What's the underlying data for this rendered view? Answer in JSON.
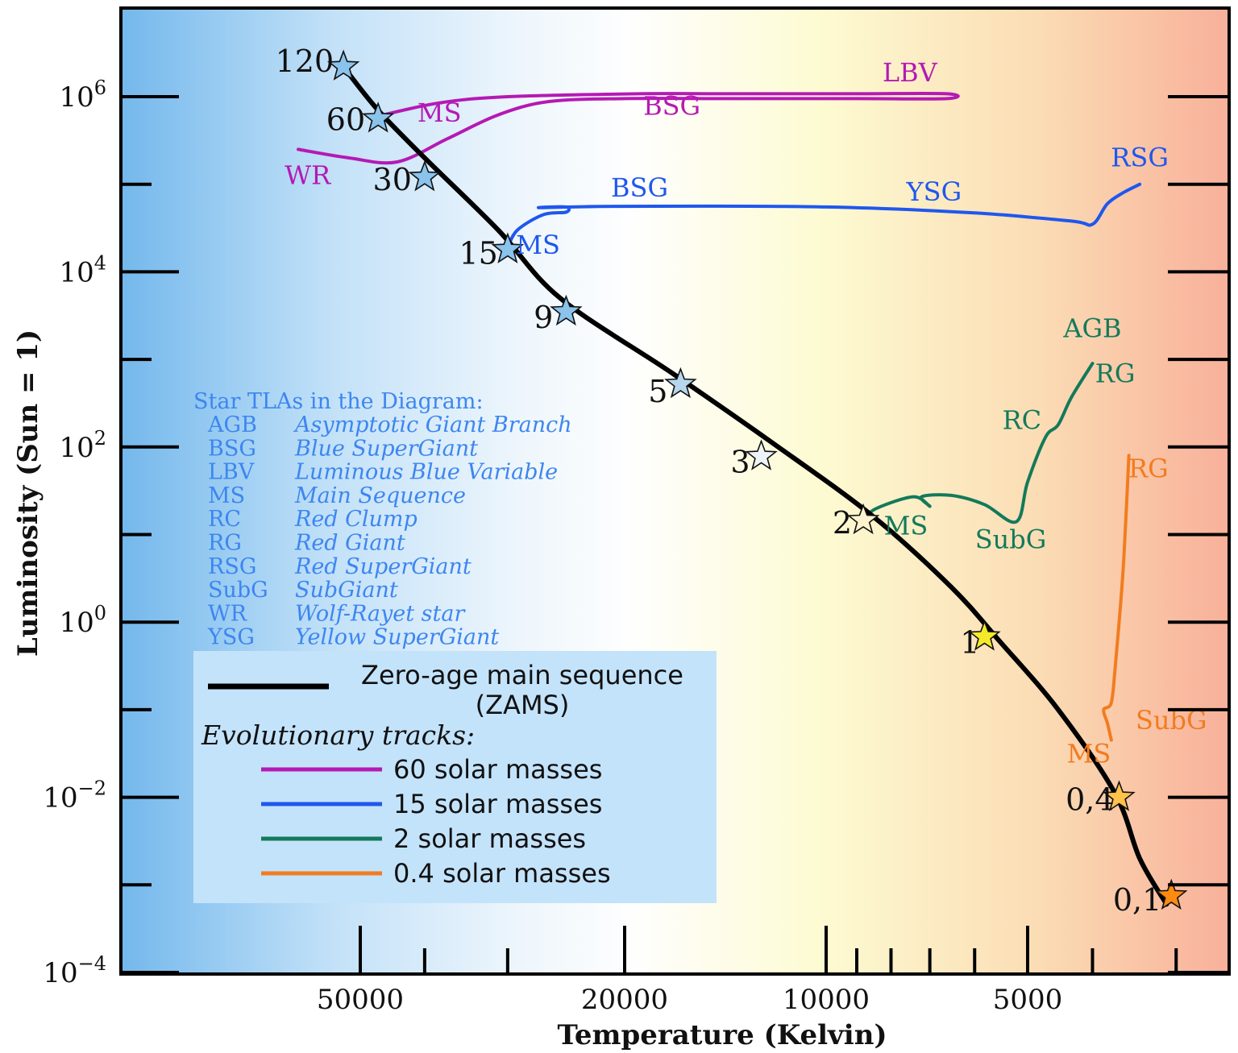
{
  "chart_data": {
    "type": "line",
    "title": "",
    "xlabel": "Temperature (Kelvin)",
    "ylabel": "Luminosity (Sun = 1)",
    "x_scale": "log, reversed",
    "y_scale": "log",
    "xlim": [
      70000,
      2800
    ],
    "ylim": [
      0.0001,
      10000000
    ],
    "grid": false,
    "x_tick_labels": [
      {
        "value": 50000,
        "label": "50000"
      },
      {
        "value": 20000,
        "label": "20000"
      },
      {
        "value": 10000,
        "label": "10000"
      },
      {
        "value": 5000,
        "label": "5000"
      }
    ],
    "x_minor_ticks": [
      40000,
      30000,
      9000,
      8000,
      7000,
      6000,
      4000,
      3000
    ],
    "y_tick_labels": [
      {
        "value": 1000000,
        "base": "10",
        "exp": "6"
      },
      {
        "value": 10000,
        "base": "10",
        "exp": "4"
      },
      {
        "value": 100,
        "base": "10",
        "exp": "2"
      },
      {
        "value": 1,
        "base": "10",
        "exp": "0"
      },
      {
        "value": 0.01,
        "base": "10",
        "exp": "−2"
      },
      {
        "value": 0.0001,
        "base": "10",
        "exp": "−4"
      }
    ],
    "y_minor_ticks": [
      100000,
      1000,
      10,
      0.1,
      0.001
    ],
    "zams": {
      "name": "Zero-age main sequence (ZAMS)",
      "color": "#000000",
      "points": [
        [
          53000,
          2200000
        ],
        [
          47000,
          700000
        ],
        [
          40000,
          200000
        ],
        [
          31000,
          30000
        ],
        [
          25000,
          5000
        ],
        [
          17000,
          700
        ],
        [
          12000,
          110
        ],
        [
          8500,
          16
        ],
        [
          6500,
          2.5
        ],
        [
          5500,
          0.6
        ],
        [
          4500,
          0.1
        ],
        [
          3700,
          0.011
        ],
        [
          3400,
          0.002
        ],
        [
          3100,
          0.0006
        ]
      ]
    },
    "zams_stars": [
      {
        "label": "120",
        "temp": 53000,
        "lum": 2200000,
        "color": "#8ac3ec"
      },
      {
        "label": "60",
        "temp": 47000,
        "lum": 560000,
        "color": "#8ac3ec"
      },
      {
        "label": "30",
        "temp": 40000,
        "lum": 120000,
        "color": "#8ac3ec"
      },
      {
        "label": "15",
        "temp": 30000,
        "lum": 18000,
        "color": "#8ac3ec"
      },
      {
        "label": "9",
        "temp": 24500,
        "lum": 3500,
        "color": "#8ac3ec"
      },
      {
        "label": "5",
        "temp": 16500,
        "lum": 520,
        "color": "#b6d6ee"
      },
      {
        "label": "3",
        "temp": 12500,
        "lum": 78,
        "color": "#eef3f7"
      },
      {
        "label": "2",
        "temp": 8800,
        "lum": 14.5,
        "color": "#fff3cf"
      },
      {
        "label": "1",
        "temp": 5800,
        "lum": 0.68,
        "color": "#f5ea2a"
      },
      {
        "label": "0,4",
        "temp": 3650,
        "lum": 0.01,
        "color": "#ffc24a"
      },
      {
        "label": "0,1",
        "temp": 3050,
        "lum": 0.00075,
        "color": "#ff8a10"
      }
    ],
    "series": [
      {
        "name": "60 solar masses",
        "color": "#b41ab4",
        "points": [
          [
            47000,
            600000
          ],
          [
            38000,
            850000
          ],
          [
            30000,
            1000000
          ],
          [
            19000,
            1080000
          ],
          [
            14000,
            1080000
          ],
          [
            9000,
            1080000
          ],
          [
            6600,
            1080000
          ],
          [
            6600,
            950000
          ],
          [
            9000,
            950000
          ],
          [
            14000,
            950000
          ],
          [
            20000,
            950000
          ],
          [
            26000,
            880000
          ],
          [
            31000,
            620000
          ],
          [
            37000,
            330000
          ],
          [
            44000,
            180000
          ],
          [
            52000,
            200000
          ],
          [
            62000,
            250000
          ]
        ],
        "labels": [
          {
            "text": "LBV",
            "temp": 7500,
            "lum": 1500000
          },
          {
            "text": "MS",
            "temp": 38000,
            "lum": 520000
          },
          {
            "text": "BSG",
            "temp": 17000,
            "lum": 620000
          },
          {
            "text": "WR",
            "temp": 60000,
            "lum": 100000
          }
        ]
      },
      {
        "name": "15 solar masses",
        "color": "#1f57ee",
        "points": [
          [
            30000,
            19000
          ],
          [
            29000,
            30000
          ],
          [
            26500,
            45000
          ],
          [
            24500,
            48000
          ],
          [
            24500,
            55000
          ],
          [
            26800,
            54000
          ],
          [
            20000,
            56000
          ],
          [
            10000,
            55000
          ],
          [
            6000,
            47000
          ],
          [
            4300,
            38000
          ],
          [
            4000,
            35000
          ],
          [
            3800,
            60000
          ],
          [
            3600,
            80000
          ],
          [
            3400,
            100000
          ]
        ],
        "labels": [
          {
            "text": "BSG",
            "temp": 19000,
            "lum": 72000
          },
          {
            "text": "YSG",
            "temp": 6900,
            "lum": 65000
          },
          {
            "text": "RSG",
            "temp": 3400,
            "lum": 160000
          },
          {
            "text": "MS",
            "temp": 27000,
            "lum": 16000
          }
        ]
      },
      {
        "name": "2 solar masses",
        "color": "#137a5a",
        "points": [
          [
            8800,
            15
          ],
          [
            8400,
            20
          ],
          [
            7400,
            27
          ],
          [
            7000,
            21
          ],
          [
            7200,
            27
          ],
          [
            6500,
            28
          ],
          [
            5800,
            22
          ],
          [
            5200,
            14
          ],
          [
            5000,
            40
          ],
          [
            4700,
            130
          ],
          [
            4500,
            180
          ],
          [
            4300,
            370
          ],
          [
            4000,
            900
          ]
        ],
        "labels": [
          {
            "text": "AGB",
            "temp": 4000,
            "lum": 1800
          },
          {
            "text": "RG",
            "temp": 3700,
            "lum": 550
          },
          {
            "text": "RC",
            "temp": 5100,
            "lum": 160
          },
          {
            "text": "MS",
            "temp": 7600,
            "lum": 10
          },
          {
            "text": "SubG",
            "temp": 5300,
            "lum": 7
          }
        ]
      },
      {
        "name": "0.4 solar masses",
        "color": "#f27c1f",
        "points": [
          [
            3750,
            0.045
          ],
          [
            3800,
            0.07
          ],
          [
            3850,
            0.1
          ],
          [
            3750,
            0.12
          ],
          [
            3700,
            0.3
          ],
          [
            3650,
            1
          ],
          [
            3600,
            4
          ],
          [
            3560,
            20
          ],
          [
            3530,
            80
          ]
        ],
        "labels": [
          {
            "text": "RG",
            "temp": 3300,
            "lum": 45
          },
          {
            "text": "SubG",
            "temp": 3050,
            "lum": 0.06
          },
          {
            "text": "MS",
            "temp": 4050,
            "lum": 0.025
          }
        ]
      }
    ],
    "glossary": {
      "title": "Star TLAs in the Diagram:",
      "entries": [
        {
          "abbr": "AGB",
          "def": "Asymptotic Giant Branch"
        },
        {
          "abbr": "BSG",
          "def": "Blue SuperGiant"
        },
        {
          "abbr": "LBV",
          "def": "Luminous Blue Variable"
        },
        {
          "abbr": "MS",
          "def": "Main Sequence"
        },
        {
          "abbr": "RC",
          "def": "Red Clump"
        },
        {
          "abbr": "RG",
          "def": "Red Giant"
        },
        {
          "abbr": "RSG",
          "def": "Red SuperGiant"
        },
        {
          "abbr": "SubG",
          "def": "SubGiant"
        },
        {
          "abbr": "WR",
          "def": "Wolf-Rayet star"
        },
        {
          "abbr": "YSG",
          "def": "Yellow SuperGiant"
        }
      ]
    },
    "legend": {
      "placement": "bottom-left",
      "zams_line1": "Zero-age main sequence",
      "zams_line2": "(ZAMS)",
      "tracks_heading": "Evolutionary tracks:",
      "entries": [
        {
          "label": "60 solar masses",
          "color": "#b41ab4"
        },
        {
          "label": "15 solar masses",
          "color": "#1f57ee"
        },
        {
          "label": "2 solar masses",
          "color": "#137a5a"
        },
        {
          "label": "0.4 solar masses",
          "color": "#f27c1f"
        }
      ]
    }
  }
}
